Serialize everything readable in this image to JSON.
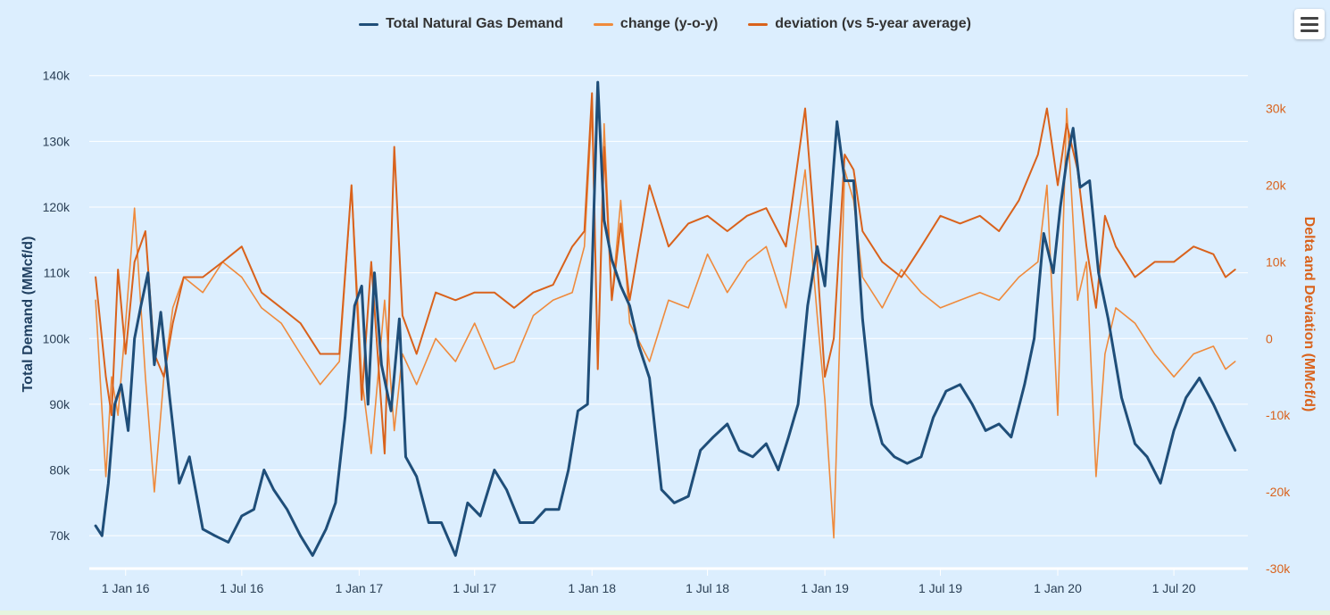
{
  "legend": [
    {
      "label": "Total Natural Gas Demand",
      "color": "#1f4e79"
    },
    {
      "label": "change (y-o-y)",
      "color": "#ef8a3c"
    },
    {
      "label": "deviation (vs 5-year average)",
      "color": "#d9621c"
    }
  ],
  "menu": {
    "icon": "hamburger-menu-icon"
  },
  "chart_data": {
    "type": "line",
    "ylabel": "Total Demand (MMcf/d)",
    "y2label": "Delta and Deviation (MMcf/d)",
    "ylim": [
      65000,
      142000
    ],
    "y2lim": [
      -30000,
      36000
    ],
    "y_ticks": [
      "70k",
      "80k",
      "90k",
      "100k",
      "110k",
      "120k",
      "130k",
      "140k"
    ],
    "y2_ticks": [
      "-30k",
      "-20k",
      "-10k",
      "0",
      "10k",
      "20k",
      "30k"
    ],
    "x_ticks": [
      "1 Jan 16",
      "1 Jul 16",
      "1 Jan 17",
      "1 Jul 17",
      "1 Jan 18",
      "1 Jul 18",
      "1 Jan 19",
      "1 Jul 19",
      "1 Jan 20",
      "1 Jul 20"
    ],
    "grid": true,
    "legend_position": "top-center",
    "series": [
      {
        "name": "Total Natural Gas Demand",
        "axis": "left",
        "color": "#1f4e79",
        "x": [
          "2015-11-15",
          "2015-11-25",
          "2015-12-05",
          "2015-12-15",
          "2015-12-25",
          "2016-01-05",
          "2016-01-15",
          "2016-01-25",
          "2016-02-05",
          "2016-02-15",
          "2016-02-25",
          "2016-03-10",
          "2016-03-25",
          "2016-04-10",
          "2016-05-01",
          "2016-05-20",
          "2016-06-10",
          "2016-07-01",
          "2016-07-20",
          "2016-08-05",
          "2016-08-20",
          "2016-09-10",
          "2016-10-01",
          "2016-10-20",
          "2016-11-10",
          "2016-11-25",
          "2016-12-10",
          "2016-12-25",
          "2017-01-05",
          "2017-01-15",
          "2017-01-25",
          "2017-02-05",
          "2017-02-20",
          "2017-03-05",
          "2017-03-15",
          "2017-04-01",
          "2017-04-20",
          "2017-05-10",
          "2017-06-01",
          "2017-06-20",
          "2017-07-10",
          "2017-08-01",
          "2017-08-20",
          "2017-09-10",
          "2017-10-01",
          "2017-10-20",
          "2017-11-10",
          "2017-11-25",
          "2017-12-10",
          "2017-12-25",
          "2018-01-01",
          "2018-01-10",
          "2018-01-20",
          "2018-02-01",
          "2018-02-15",
          "2018-03-01",
          "2018-03-15",
          "2018-04-01",
          "2018-04-20",
          "2018-05-10",
          "2018-06-01",
          "2018-06-20",
          "2018-07-10",
          "2018-08-01",
          "2018-08-20",
          "2018-09-10",
          "2018-10-01",
          "2018-10-20",
          "2018-11-05",
          "2018-11-20",
          "2018-12-05",
          "2018-12-20",
          "2019-01-01",
          "2019-01-10",
          "2019-01-20",
          "2019-02-01",
          "2019-02-15",
          "2019-03-01",
          "2019-03-15",
          "2019-04-01",
          "2019-04-20",
          "2019-05-10",
          "2019-06-01",
          "2019-06-20",
          "2019-07-10",
          "2019-08-01",
          "2019-08-20",
          "2019-09-10",
          "2019-10-01",
          "2019-10-20",
          "2019-11-10",
          "2019-11-25",
          "2019-12-10",
          "2019-12-25",
          "2020-01-05",
          "2020-01-15",
          "2020-01-25",
          "2020-02-05",
          "2020-02-20",
          "2020-03-05",
          "2020-03-20",
          "2020-04-10",
          "2020-05-01",
          "2020-05-20",
          "2020-06-10",
          "2020-07-01",
          "2020-07-20",
          "2020-08-10",
          "2020-09-01",
          "2020-09-20",
          "2020-10-05"
        ],
        "values": [
          71500,
          70000,
          78000,
          90000,
          93000,
          86000,
          100000,
          105000,
          110000,
          96000,
          104000,
          91000,
          78000,
          82000,
          71000,
          70000,
          69000,
          73000,
          74000,
          80000,
          77000,
          74000,
          70000,
          67000,
          71000,
          75000,
          88000,
          105000,
          108000,
          90000,
          110000,
          96000,
          89000,
          103000,
          82000,
          79000,
          72000,
          72000,
          67000,
          75000,
          73000,
          80000,
          77000,
          72000,
          72000,
          74000,
          74000,
          80000,
          89000,
          90000,
          110000,
          139000,
          118000,
          112000,
          108000,
          105000,
          99000,
          94000,
          77000,
          75000,
          76000,
          83000,
          85000,
          87000,
          83000,
          82000,
          84000,
          80000,
          85000,
          90000,
          105000,
          114000,
          108000,
          120000,
          133000,
          124000,
          124000,
          103000,
          90000,
          84000,
          82000,
          81000,
          82000,
          88000,
          92000,
          93000,
          90000,
          86000,
          87000,
          85000,
          93000,
          100000,
          116000,
          110000,
          120000,
          127000,
          132000,
          123000,
          124000,
          110000,
          103000,
          91000,
          84000,
          82000,
          78000,
          86000,
          91000,
          94000,
          90000,
          86000,
          83000
        ]
      },
      {
        "name": "change (y-o-y)",
        "axis": "right",
        "color": "#ef8a3c",
        "x": [
          "2015-11-15",
          "2015-12-01",
          "2015-12-10",
          "2015-12-20",
          "2016-01-01",
          "2016-01-15",
          "2016-02-01",
          "2016-02-15",
          "2016-03-01",
          "2016-03-15",
          "2016-04-01",
          "2016-05-01",
          "2016-06-01",
          "2016-07-01",
          "2016-08-01",
          "2016-09-01",
          "2016-10-01",
          "2016-11-01",
          "2016-12-01",
          "2016-12-20",
          "2017-01-05",
          "2017-01-20",
          "2017-02-10",
          "2017-02-25",
          "2017-03-10",
          "2017-04-01",
          "2017-05-01",
          "2017-06-01",
          "2017-07-01",
          "2017-08-01",
          "2017-09-01",
          "2017-10-01",
          "2017-11-01",
          "2017-12-01",
          "2017-12-20",
          "2018-01-01",
          "2018-01-10",
          "2018-01-20",
          "2018-02-01",
          "2018-02-15",
          "2018-03-01",
          "2018-04-01",
          "2018-05-01",
          "2018-06-01",
          "2018-07-01",
          "2018-08-01",
          "2018-09-01",
          "2018-10-01",
          "2018-11-01",
          "2018-12-01",
          "2018-12-20",
          "2019-01-01",
          "2019-01-15",
          "2019-02-01",
          "2019-02-15",
          "2019-03-01",
          "2019-04-01",
          "2019-05-01",
          "2019-06-01",
          "2019-07-01",
          "2019-08-01",
          "2019-09-01",
          "2019-10-01",
          "2019-11-01",
          "2019-12-01",
          "2019-12-15",
          "2020-01-01",
          "2020-01-15",
          "2020-02-01",
          "2020-02-15",
          "2020-03-01",
          "2020-03-15",
          "2020-04-01",
          "2020-05-01",
          "2020-06-01",
          "2020-07-01",
          "2020-08-01",
          "2020-09-01",
          "2020-09-20",
          "2020-10-05"
        ],
        "values": [
          5000,
          -18000,
          -5000,
          -10000,
          2000,
          17000,
          -5000,
          -20000,
          -5000,
          4000,
          8000,
          6000,
          10000,
          8000,
          4000,
          2000,
          -2000,
          -6000,
          -3000,
          20000,
          -5000,
          -15000,
          5000,
          -12000,
          -2000,
          -6000,
          0,
          -3000,
          2000,
          -4000,
          -3000,
          3000,
          5000,
          6000,
          12000,
          30000,
          -4000,
          28000,
          5000,
          18000,
          2000,
          -3000,
          5000,
          4000,
          11000,
          6000,
          10000,
          12000,
          4000,
          22000,
          3000,
          -8000,
          -26000,
          22000,
          18000,
          8000,
          4000,
          9000,
          6000,
          4000,
          5000,
          6000,
          5000,
          8000,
          10000,
          20000,
          -10000,
          30000,
          5000,
          10000,
          -18000,
          -2000,
          4000,
          2000,
          -2000,
          -5000,
          -2000,
          -1000,
          -4000,
          -3000
        ]
      },
      {
        "name": "deviation (vs 5-year average)",
        "axis": "right",
        "color": "#d9621c",
        "x": [
          "2015-11-15",
          "2015-12-01",
          "2015-12-10",
          "2015-12-20",
          "2016-01-01",
          "2016-01-15",
          "2016-02-01",
          "2016-02-15",
          "2016-03-01",
          "2016-03-15",
          "2016-04-01",
          "2016-05-01",
          "2016-06-01",
          "2016-07-01",
          "2016-08-01",
          "2016-09-01",
          "2016-10-01",
          "2016-11-01",
          "2016-12-01",
          "2016-12-20",
          "2017-01-05",
          "2017-01-20",
          "2017-02-10",
          "2017-02-25",
          "2017-03-10",
          "2017-04-01",
          "2017-05-01",
          "2017-06-01",
          "2017-07-01",
          "2017-08-01",
          "2017-09-01",
          "2017-10-01",
          "2017-11-01",
          "2017-12-01",
          "2017-12-20",
          "2018-01-01",
          "2018-01-10",
          "2018-01-20",
          "2018-02-01",
          "2018-02-15",
          "2018-03-01",
          "2018-04-01",
          "2018-05-01",
          "2018-06-01",
          "2018-07-01",
          "2018-08-01",
          "2018-09-01",
          "2018-10-01",
          "2018-11-01",
          "2018-12-01",
          "2018-12-20",
          "2019-01-01",
          "2019-01-15",
          "2019-02-01",
          "2019-02-15",
          "2019-03-01",
          "2019-04-01",
          "2019-05-01",
          "2019-06-01",
          "2019-07-01",
          "2019-08-01",
          "2019-09-01",
          "2019-10-01",
          "2019-11-01",
          "2019-12-01",
          "2019-12-15",
          "2020-01-01",
          "2020-01-15",
          "2020-02-01",
          "2020-02-15",
          "2020-03-01",
          "2020-03-15",
          "2020-04-01",
          "2020-05-01",
          "2020-06-01",
          "2020-07-01",
          "2020-08-01",
          "2020-09-01",
          "2020-09-20",
          "2020-10-05"
        ],
        "values": [
          8000,
          -5000,
          -10000,
          9000,
          -2000,
          10000,
          14000,
          -2000,
          -5000,
          2000,
          8000,
          8000,
          10000,
          12000,
          6000,
          4000,
          2000,
          -2000,
          -2000,
          20000,
          -8000,
          10000,
          -15000,
          25000,
          3000,
          -2000,
          6000,
          5000,
          6000,
          6000,
          4000,
          6000,
          7000,
          12000,
          14000,
          32000,
          -4000,
          25000,
          5000,
          15000,
          5000,
          20000,
          12000,
          15000,
          16000,
          14000,
          16000,
          17000,
          12000,
          30000,
          10000,
          -5000,
          0,
          24000,
          22000,
          14000,
          10000,
          8000,
          12000,
          16000,
          15000,
          16000,
          14000,
          18000,
          24000,
          30000,
          20000,
          28000,
          22000,
          12000,
          4000,
          16000,
          12000,
          8000,
          10000,
          10000,
          12000,
          11000,
          8000,
          9000
        ]
      }
    ]
  }
}
